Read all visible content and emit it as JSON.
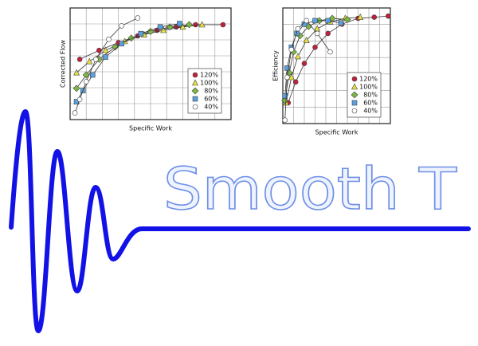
{
  "logo_text": "Smooth T",
  "chart_data": [
    {
      "type": "line",
      "x_label": "Specific Work",
      "y_label": "Corrected Flow",
      "xlim": [
        0,
        10
      ],
      "ylim": [
        0,
        10
      ],
      "grid": true,
      "legend": "lower right",
      "series": [
        {
          "name": "120%",
          "color": "#c0203a",
          "marker": "circle",
          "x": [
            0.6,
            1.8,
            3,
            4.2,
            5.4,
            6.6,
            7.8,
            9.5
          ],
          "values": [
            5.4,
            6.2,
            6.9,
            7.5,
            8.0,
            8.3,
            8.5,
            8.5
          ]
        },
        {
          "name": "100%",
          "color": "#e8e040",
          "marker": "triangle",
          "x": [
            0.4,
            1.2,
            2.2,
            3.4,
            4.6,
            5.8,
            7,
            8.2
          ],
          "values": [
            4.2,
            5.2,
            6.2,
            7.0,
            7.6,
            8.0,
            8.3,
            8.5
          ]
        },
        {
          "name": "80%",
          "color": "#7cb842",
          "marker": "diamond",
          "x": [
            0.4,
            1,
            1.8,
            2.8,
            3.8,
            5,
            6.2,
            7.4
          ],
          "values": [
            2.8,
            4.0,
            5.4,
            6.5,
            7.3,
            7.9,
            8.3,
            8.5
          ]
        },
        {
          "name": "60%",
          "color": "#5aa0e0",
          "marker": "square",
          "x": [
            0.4,
            0.8,
            1.4,
            2.2,
            3.2,
            4.4,
            5.6,
            6.8
          ],
          "values": [
            1.6,
            2.6,
            4.0,
            5.6,
            6.8,
            7.7,
            8.3,
            8.6
          ]
        },
        {
          "name": "40%",
          "color": "#ffffff",
          "marker": "circle",
          "x": [
            0.3,
            0.6,
            1,
            1.6,
            2.4,
            3.2,
            4.2
          ],
          "values": [
            0.6,
            1.8,
            3.4,
            5.4,
            7.2,
            8.4,
            9.1
          ]
        }
      ]
    },
    {
      "type": "line",
      "x_label": "Specific Work",
      "y_label": "Efficiency",
      "xlim": [
        0,
        10
      ],
      "ylim": [
        0,
        10
      ],
      "grid": true,
      "legend": "lower right",
      "series": [
        {
          "name": "120%",
          "color": "#c0203a",
          "marker": "circle",
          "x": [
            0.5,
            1.2,
            2,
            3,
            4.2,
            5.5,
            7,
            8.5,
            9.8
          ],
          "values": [
            1.8,
            3.6,
            5.2,
            6.6,
            7.8,
            8.6,
            9.1,
            9.2,
            9.3
          ]
        },
        {
          "name": "100%",
          "color": "#e8e040",
          "marker": "triangle",
          "x": [
            0.3,
            0.8,
            1.4,
            2.2,
            3.2,
            4.4,
            5.8,
            7.2
          ],
          "values": [
            1.8,
            4.0,
            5.8,
            7.2,
            8.2,
            8.8,
            9.1,
            9.2
          ]
        },
        {
          "name": "80%",
          "color": "#7cb842",
          "marker": "diamond",
          "x": [
            0.2,
            0.6,
            1,
            1.6,
            2.4,
            3.4,
            4.6,
            6
          ],
          "values": [
            2.0,
            4.4,
            6.2,
            7.6,
            8.4,
            8.9,
            9.1,
            9.0
          ]
        },
        {
          "name": "60%",
          "color": "#5aa0e0",
          "marker": "square",
          "x": [
            0.2,
            0.4,
            0.8,
            1.3,
            2,
            3,
            4.2,
            5.4
          ],
          "values": [
            2.4,
            4.8,
            6.6,
            7.8,
            8.6,
            8.9,
            8.9,
            8.7
          ]
        },
        {
          "name": "40%",
          "color": "#ffffff",
          "marker": "circle",
          "x": [
            0.2,
            0.4,
            0.8,
            1.4,
            2.2,
            3.2,
            4.4
          ],
          "values": [
            0.3,
            4.0,
            6.4,
            8.2,
            8.9,
            7.8,
            6.2
          ]
        }
      ]
    }
  ]
}
